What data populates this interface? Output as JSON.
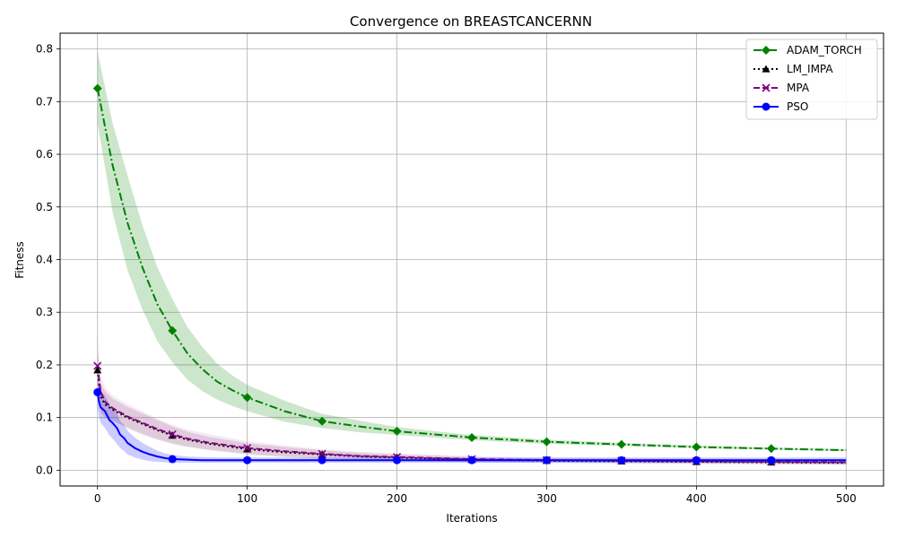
{
  "chart_data": {
    "type": "line",
    "title": "Convergence on BREASTCANCERNN",
    "xlabel": "Iterations",
    "ylabel": "Fitness",
    "xlim": [
      -25,
      525
    ],
    "ylim": [
      -0.03,
      0.83
    ],
    "xticks": [
      0,
      100,
      200,
      300,
      400,
      500
    ],
    "yticks": [
      0.0,
      0.1,
      0.2,
      0.3,
      0.4,
      0.5,
      0.6,
      0.7,
      0.8
    ],
    "grid": true,
    "legend": "top-right",
    "series": [
      {
        "name": "ADAM_TORCH",
        "color": "#008000",
        "line_style": "dashdot",
        "marker": "diamond",
        "band_color": "#008000",
        "x": [
          0,
          10,
          20,
          30,
          40,
          50,
          60,
          70,
          80,
          90,
          100,
          125,
          150,
          175,
          200,
          225,
          250,
          300,
          350,
          400,
          450,
          500
        ],
        "y": [
          0.725,
          0.58,
          0.47,
          0.385,
          0.315,
          0.265,
          0.222,
          0.192,
          0.168,
          0.152,
          0.138,
          0.112,
          0.093,
          0.083,
          0.074,
          0.068,
          0.062,
          0.054,
          0.049,
          0.044,
          0.041,
          0.038
        ],
        "lower": [
          0.66,
          0.49,
          0.38,
          0.305,
          0.245,
          0.205,
          0.172,
          0.15,
          0.134,
          0.122,
          0.112,
          0.092,
          0.08,
          0.072,
          0.067,
          0.062,
          0.057,
          0.05,
          0.046,
          0.042,
          0.039,
          0.036
        ],
        "upper": [
          0.795,
          0.66,
          0.56,
          0.465,
          0.385,
          0.325,
          0.272,
          0.234,
          0.202,
          0.18,
          0.162,
          0.132,
          0.107,
          0.094,
          0.082,
          0.074,
          0.067,
          0.058,
          0.052,
          0.047,
          0.043,
          0.04
        ],
        "marker_x": [
          0,
          50,
          100,
          150,
          200,
          250,
          300,
          350,
          400,
          450
        ],
        "marker_y": [
          0.725,
          0.265,
          0.138,
          0.093,
          0.074,
          0.062,
          0.054,
          0.049,
          0.044,
          0.041
        ]
      },
      {
        "name": "LM_IMPA",
        "color": "#000000",
        "line_style": "dotted",
        "marker": "triangle",
        "band_color": "#6b4c4c",
        "x": [
          0,
          2,
          5,
          10,
          20,
          30,
          40,
          50,
          60,
          75,
          100,
          125,
          150,
          175,
          200,
          250,
          300,
          350,
          400,
          450,
          500
        ],
        "y": [
          0.19,
          0.14,
          0.125,
          0.115,
          0.1,
          0.088,
          0.076,
          0.066,
          0.058,
          0.05,
          0.04,
          0.034,
          0.03,
          0.026,
          0.024,
          0.02,
          0.018,
          0.017,
          0.016,
          0.015,
          0.014
        ],
        "lower": [
          0.15,
          0.11,
          0.1,
          0.094,
          0.08,
          0.068,
          0.058,
          0.05,
          0.044,
          0.038,
          0.03,
          0.025,
          0.022,
          0.02,
          0.018,
          0.015,
          0.014,
          0.013,
          0.012,
          0.011,
          0.01
        ],
        "upper": [
          0.23,
          0.165,
          0.15,
          0.136,
          0.12,
          0.108,
          0.095,
          0.083,
          0.073,
          0.063,
          0.051,
          0.044,
          0.038,
          0.033,
          0.03,
          0.025,
          0.022,
          0.021,
          0.02,
          0.019,
          0.018
        ],
        "marker_x": [
          0,
          50,
          100,
          150,
          200,
          250,
          300,
          350,
          400,
          450
        ],
        "marker_y": [
          0.19,
          0.066,
          0.04,
          0.03,
          0.024,
          0.02,
          0.018,
          0.017,
          0.016,
          0.015
        ]
      },
      {
        "name": "MPA",
        "color": "#800080",
        "line_style": "dashed",
        "marker": "x",
        "band_color": "#dd88dd",
        "x": [
          0,
          2,
          5,
          10,
          20,
          30,
          40,
          50,
          60,
          75,
          100,
          125,
          150,
          175,
          200,
          250,
          300,
          350,
          400,
          450,
          500
        ],
        "y": [
          0.198,
          0.15,
          0.13,
          0.118,
          0.102,
          0.09,
          0.078,
          0.068,
          0.06,
          0.052,
          0.042,
          0.036,
          0.031,
          0.027,
          0.025,
          0.021,
          0.019,
          0.018,
          0.017,
          0.016,
          0.015
        ],
        "lower": [
          0.155,
          0.115,
          0.104,
          0.096,
          0.082,
          0.07,
          0.06,
          0.052,
          0.046,
          0.04,
          0.032,
          0.027,
          0.023,
          0.021,
          0.019,
          0.016,
          0.015,
          0.014,
          0.013,
          0.012,
          0.011
        ],
        "upper": [
          0.255,
          0.18,
          0.158,
          0.142,
          0.125,
          0.112,
          0.098,
          0.086,
          0.077,
          0.068,
          0.055,
          0.047,
          0.04,
          0.035,
          0.032,
          0.027,
          0.024,
          0.023,
          0.022,
          0.021,
          0.02
        ],
        "marker_x": [
          0,
          50,
          100,
          150,
          200,
          250,
          300,
          350,
          400,
          450
        ],
        "marker_y": [
          0.198,
          0.068,
          0.042,
          0.031,
          0.025,
          0.021,
          0.019,
          0.018,
          0.017,
          0.016
        ]
      },
      {
        "name": "PSO",
        "color": "#0000ff",
        "line_style": "solid",
        "marker": "circle",
        "band_color": "#0000ff",
        "x": [
          0,
          1,
          2,
          5,
          8,
          10,
          13,
          15,
          18,
          20,
          25,
          30,
          35,
          40,
          45,
          50,
          60,
          70,
          80,
          100,
          150,
          200,
          250,
          300,
          350,
          400,
          450,
          500
        ],
        "y": [
          0.148,
          0.13,
          0.12,
          0.112,
          0.095,
          0.09,
          0.08,
          0.068,
          0.06,
          0.052,
          0.042,
          0.035,
          0.03,
          0.026,
          0.023,
          0.021,
          0.02,
          0.019,
          0.019,
          0.019,
          0.019,
          0.019,
          0.019,
          0.019,
          0.019,
          0.019,
          0.019,
          0.019
        ],
        "lower": [
          0.12,
          0.1,
          0.09,
          0.08,
          0.066,
          0.06,
          0.05,
          0.042,
          0.036,
          0.03,
          0.024,
          0.02,
          0.017,
          0.016,
          0.015,
          0.014,
          0.014,
          0.014,
          0.014,
          0.014,
          0.014,
          0.014,
          0.014,
          0.014,
          0.014,
          0.014,
          0.014,
          0.014
        ],
        "upper": [
          0.175,
          0.158,
          0.148,
          0.142,
          0.124,
          0.118,
          0.108,
          0.094,
          0.085,
          0.075,
          0.062,
          0.052,
          0.044,
          0.037,
          0.032,
          0.029,
          0.026,
          0.025,
          0.024,
          0.024,
          0.024,
          0.024,
          0.024,
          0.024,
          0.024,
          0.024,
          0.024,
          0.024
        ],
        "marker_x": [
          0,
          50,
          100,
          150,
          200,
          250,
          300,
          350,
          400,
          450
        ],
        "marker_y": [
          0.148,
          0.021,
          0.019,
          0.019,
          0.019,
          0.019,
          0.019,
          0.019,
          0.019,
          0.019
        ]
      }
    ]
  }
}
